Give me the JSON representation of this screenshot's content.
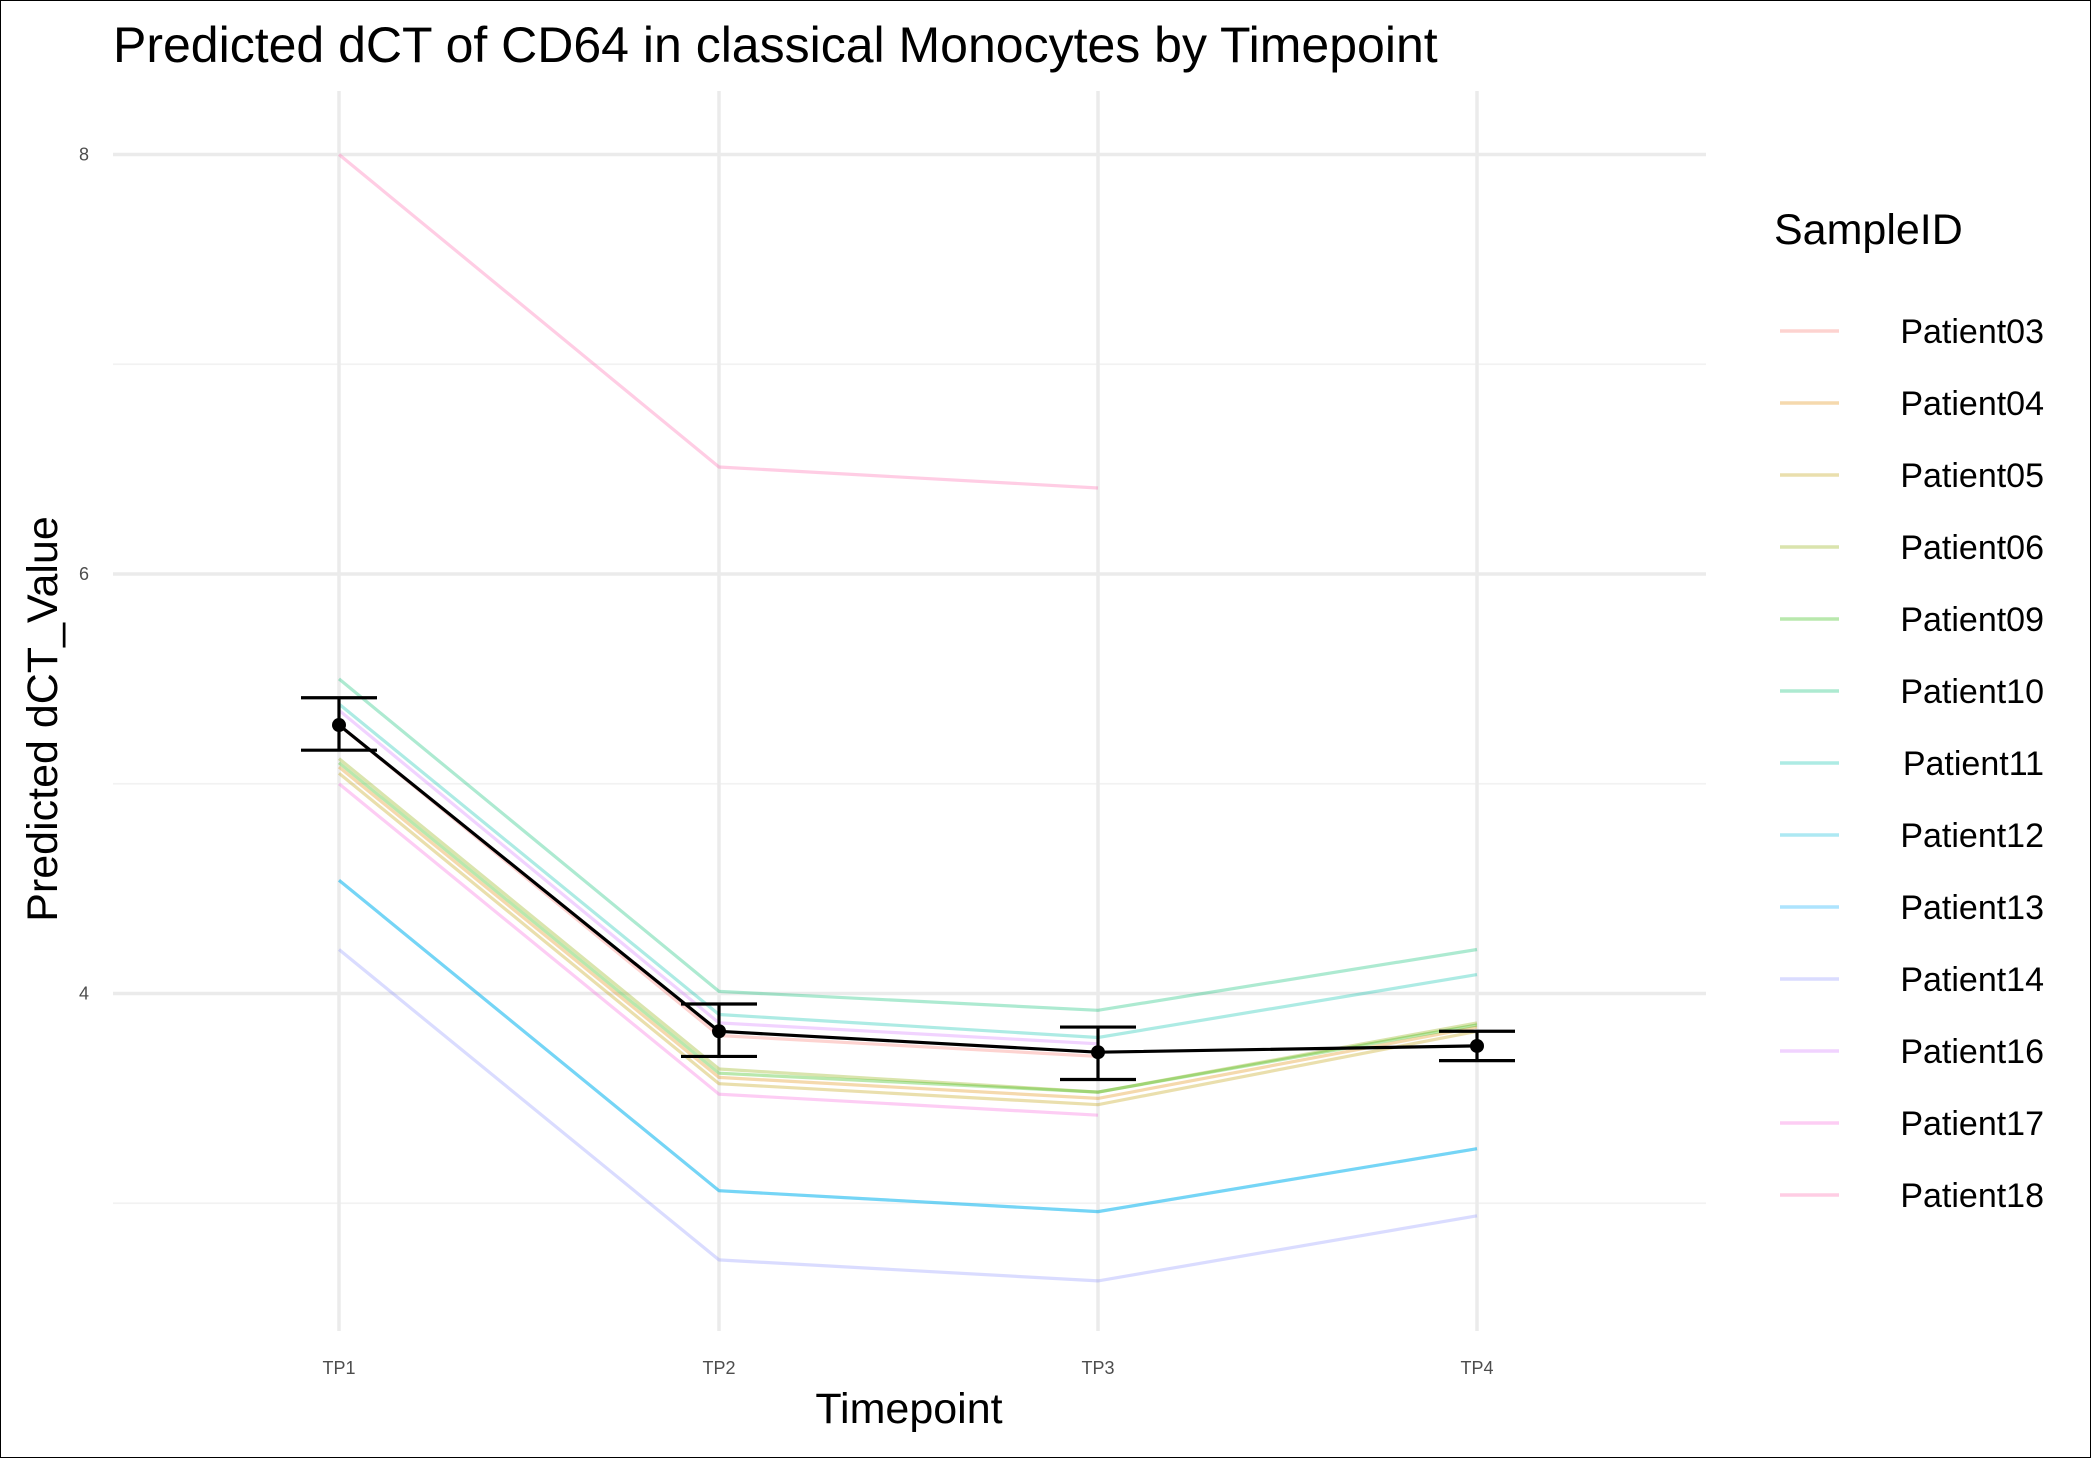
{
  "chart_data": {
    "type": "line",
    "title": "Predicted dCT of  CD64 in  classical  Monocytes by Timepoint",
    "xlabel": "Timepoint",
    "ylabel": "Predicted dCT_Value",
    "categories": [
      "TP1",
      "TP2",
      "TP3",
      "TP4"
    ],
    "ylim": [
      2.25,
      8.55
    ],
    "yticks": [
      4,
      6,
      8
    ],
    "grid": true,
    "legend": {
      "title": "SampleID",
      "position": "right"
    },
    "series": [
      {
        "name": "Patient03",
        "color": "#F8766D",
        "values": [
          5.28,
          3.8,
          3.7,
          null
        ]
      },
      {
        "name": "Patient04",
        "color": "#E18A00",
        "values": [
          5.08,
          3.6,
          3.5,
          3.84
        ]
      },
      {
        "name": "Patient05",
        "color": "#BE9C00",
        "values": [
          5.05,
          3.57,
          3.47,
          3.82
        ]
      },
      {
        "name": "Patient06",
        "color": "#8CAB00",
        "values": [
          5.12,
          3.64,
          3.53,
          3.86
        ]
      },
      {
        "name": "Patient09",
        "color": "#24B700",
        "values": [
          5.1,
          3.62,
          3.53,
          3.85
        ]
      },
      {
        "name": "Patient10",
        "color": "#00BE70",
        "values": [
          5.5,
          4.01,
          3.92,
          4.21
        ]
      },
      {
        "name": "Patient11",
        "color": "#00C1AB",
        "values": [
          5.38,
          3.9,
          3.79,
          4.09
        ]
      },
      {
        "name": "Patient12",
        "color": "#00BBDA",
        "values": [
          4.54,
          3.06,
          2.96,
          3.26
        ]
      },
      {
        "name": "Patient13",
        "color": "#00ACFC",
        "values": [
          4.54,
          3.06,
          2.96,
          3.26
        ]
      },
      {
        "name": "Patient14",
        "color": "#8B93FF",
        "values": [
          4.21,
          2.73,
          2.63,
          2.94
        ]
      },
      {
        "name": "Patient16",
        "color": "#D575FE",
        "values": [
          5.35,
          3.86,
          3.76,
          null
        ]
      },
      {
        "name": "Patient17",
        "color": "#F962DD",
        "values": [
          5.0,
          3.52,
          3.42,
          null
        ]
      },
      {
        "name": "Patient18",
        "color": "#FF65AC",
        "values": [
          8.0,
          6.51,
          6.41,
          null
        ]
      }
    ],
    "mean": {
      "values": [
        5.28,
        3.82,
        3.72,
        3.75
      ],
      "lower": [
        5.16,
        3.7,
        3.59,
        3.68
      ],
      "upper": [
        5.41,
        3.95,
        3.84,
        3.82
      ],
      "color": "#000000"
    }
  }
}
